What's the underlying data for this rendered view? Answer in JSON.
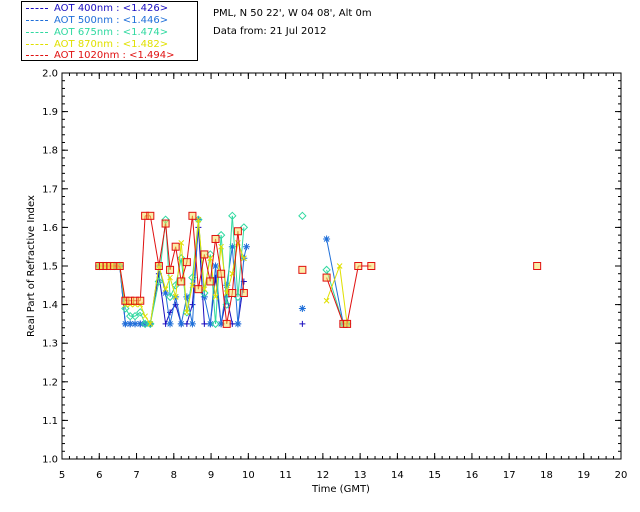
{
  "header": {
    "site_line": "PML, N 50 22', W 04 08', Alt 0m",
    "date_line": "Data from: 21 Jul 2012"
  },
  "legend": [
    {
      "label": "AOT  400nm : <1.426>",
      "color": "#1a0dbf"
    },
    {
      "label": "AOT  500nm : <1.446>",
      "color": "#1f6fd9"
    },
    {
      "label": "AOT  675nm : <1.474>",
      "color": "#30d9a0"
    },
    {
      "label": "AOT  870nm : <1.482>",
      "color": "#e0e000"
    },
    {
      "label": "AOT 1020nm : <1.494>",
      "color": "#e01010"
    }
  ],
  "chart_data": {
    "type": "line",
    "xlabel": "Time (GMT)",
    "ylabel": "Real Part of Refractive Index",
    "xlim": [
      5,
      20
    ],
    "ylim": [
      1.0,
      2.0
    ],
    "xticks": [
      "5",
      "6",
      "7",
      "8",
      "9",
      "10",
      "11",
      "12",
      "13",
      "14",
      "15",
      "16",
      "17",
      "18",
      "19",
      "20"
    ],
    "yticks": [
      "1.0",
      "1.1",
      "1.2",
      "1.3",
      "1.4",
      "1.5",
      "1.6",
      "1.7",
      "1.8",
      "1.9",
      "2.0"
    ],
    "series": [
      {
        "name": "AOT  400nm : <1.426>",
        "color": "#1a0dbf",
        "marker": "plus",
        "x": [
          6.0,
          6.1,
          6.2,
          6.3,
          6.4,
          6.55,
          6.7,
          6.83,
          6.96,
          7.1,
          7.23,
          7.37,
          7.6,
          7.78,
          7.9,
          8.05,
          8.2,
          8.35,
          8.5,
          8.66,
          8.82,
          8.98,
          9.12,
          9.27,
          9.42,
          9.57,
          9.72,
          9.88,
          11.45,
          12.55,
          12.65
        ],
        "y": [
          1.5,
          1.5,
          1.5,
          1.5,
          1.5,
          1.5,
          1.35,
          1.35,
          1.35,
          1.35,
          1.35,
          1.35,
          1.48,
          1.35,
          1.38,
          1.4,
          1.35,
          1.35,
          1.4,
          1.6,
          1.35,
          1.35,
          1.47,
          1.35,
          1.42,
          1.35,
          1.35,
          1.46,
          1.35,
          1.35,
          1.35
        ]
      },
      {
        "name": "AOT  500nm : <1.446>",
        "color": "#1f6fd9",
        "marker": "asterisk",
        "x": [
          6.0,
          6.1,
          6.2,
          6.3,
          6.4,
          6.55,
          6.7,
          6.83,
          6.96,
          7.1,
          7.23,
          7.37,
          7.6,
          7.78,
          7.9,
          8.05,
          8.2,
          8.35,
          8.5,
          8.66,
          8.82,
          8.98,
          9.12,
          9.27,
          9.42,
          9.57,
          9.72,
          9.88,
          9.95,
          11.45,
          12.1,
          12.55,
          12.65
        ],
        "y": [
          1.5,
          1.5,
          1.5,
          1.5,
          1.5,
          1.5,
          1.35,
          1.35,
          1.35,
          1.35,
          1.35,
          1.35,
          1.5,
          1.43,
          1.35,
          1.42,
          1.35,
          1.42,
          1.35,
          1.62,
          1.42,
          1.35,
          1.5,
          1.35,
          1.45,
          1.55,
          1.35,
          1.52,
          1.55,
          1.39,
          1.57,
          1.35,
          1.35
        ]
      },
      {
        "name": "AOT  675nm : <1.474>",
        "color": "#30d9a0",
        "marker": "diamond",
        "x": [
          6.0,
          6.1,
          6.2,
          6.3,
          6.4,
          6.55,
          6.7,
          6.83,
          6.96,
          7.1,
          7.23,
          7.37,
          7.6,
          7.78,
          7.9,
          8.05,
          8.2,
          8.35,
          8.5,
          8.66,
          8.82,
          8.98,
          9.12,
          9.27,
          9.42,
          9.57,
          9.72,
          9.88,
          11.45,
          12.1,
          12.55,
          12.65
        ],
        "y": [
          1.5,
          1.5,
          1.5,
          1.5,
          1.5,
          1.5,
          1.39,
          1.37,
          1.37,
          1.38,
          1.35,
          1.35,
          1.46,
          1.62,
          1.42,
          1.45,
          1.52,
          1.38,
          1.47,
          1.62,
          1.43,
          1.53,
          1.35,
          1.58,
          1.4,
          1.63,
          1.42,
          1.6,
          1.63,
          1.49,
          1.35,
          1.35
        ]
      },
      {
        "name": "AOT  870nm : <1.482>",
        "color": "#e0e000",
        "marker": "cross",
        "x": [
          6.0,
          6.1,
          6.2,
          6.3,
          6.4,
          6.55,
          6.7,
          6.83,
          6.96,
          7.1,
          7.23,
          7.37,
          7.6,
          7.78,
          7.9,
          8.05,
          8.2,
          8.35,
          8.5,
          8.66,
          8.82,
          8.98,
          9.12,
          9.27,
          9.42,
          9.57,
          9.72,
          9.88,
          12.1,
          12.45,
          12.65
        ],
        "y": [
          1.5,
          1.5,
          1.5,
          1.5,
          1.5,
          1.5,
          1.4,
          1.4,
          1.4,
          1.4,
          1.37,
          1.35,
          1.5,
          1.44,
          1.47,
          1.42,
          1.56,
          1.38,
          1.45,
          1.62,
          1.44,
          1.52,
          1.42,
          1.55,
          1.43,
          1.48,
          1.56,
          1.52,
          1.41,
          1.5,
          1.35
        ]
      },
      {
        "name": "AOT 1020nm : <1.494>",
        "color": "#e01010",
        "marker": "square",
        "x": [
          6.0,
          6.1,
          6.2,
          6.3,
          6.4,
          6.55,
          6.7,
          6.83,
          6.96,
          7.1,
          7.23,
          7.37,
          7.6,
          7.78,
          7.9,
          8.05,
          8.2,
          8.35,
          8.5,
          8.66,
          8.82,
          8.98,
          9.12,
          9.27,
          9.42,
          9.57,
          9.72,
          9.88,
          11.45,
          12.1,
          12.55,
          12.65,
          12.95,
          13.3,
          17.75
        ],
        "y": [
          1.5,
          1.5,
          1.5,
          1.5,
          1.5,
          1.5,
          1.41,
          1.41,
          1.41,
          1.41,
          1.63,
          1.63,
          1.5,
          1.61,
          1.49,
          1.55,
          1.46,
          1.51,
          1.63,
          1.44,
          1.53,
          1.46,
          1.57,
          1.48,
          1.35,
          1.43,
          1.59,
          1.43,
          1.49,
          1.47,
          1.35,
          1.35,
          1.5,
          1.5,
          1.5
        ]
      }
    ]
  }
}
